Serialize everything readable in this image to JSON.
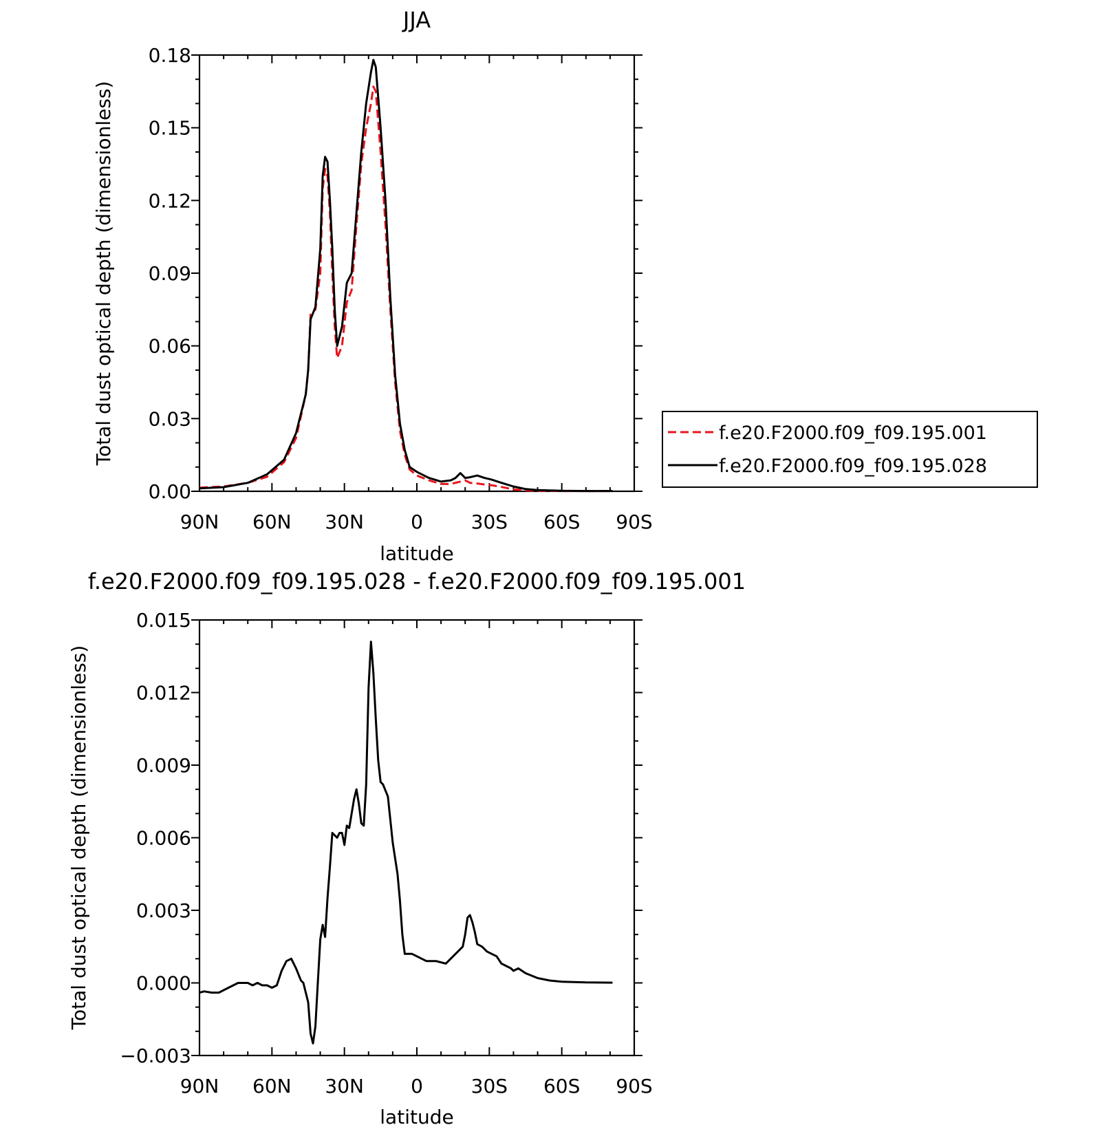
{
  "chart_data": [
    {
      "type": "line",
      "title": "JJA",
      "xlabel": "latitude",
      "ylabel": "Total dust optical depth (dimensionless)",
      "xlim": [
        90,
        -90
      ],
      "ylim": [
        0,
        0.18
      ],
      "x_ticks": [
        90,
        60,
        30,
        0,
        -30,
        -60,
        -90
      ],
      "x_tick_labels": [
        "90N",
        "60N",
        "30N",
        "0",
        "30S",
        "60S",
        "90S"
      ],
      "y_ticks": [
        0,
        0.03,
        0.06,
        0.09,
        0.12,
        0.15,
        0.18
      ],
      "y_tick_labels": [
        "0.00",
        "0.03",
        "0.06",
        "0.09",
        "0.12",
        "0.15",
        "0.18"
      ],
      "grid": false,
      "legend_position": "right",
      "series": [
        {
          "name": "f.e20.F2000.f09_f09.195.001",
          "color": "#e8141b",
          "dash": "dashed",
          "x": [
            90,
            80,
            70,
            62,
            55,
            50,
            46,
            45,
            44,
            42,
            40,
            39,
            38,
            37,
            36,
            35,
            34,
            33,
            31,
            29,
            27,
            25,
            23,
            21,
            19,
            18,
            17,
            15,
            13,
            11,
            9,
            7,
            5,
            3,
            0,
            -5,
            -10,
            -14,
            -16,
            -18,
            -20,
            -22,
            -25,
            -28,
            -31,
            -35,
            -40,
            -45,
            -50,
            -60,
            -70,
            -81
          ],
          "y": [
            0.0015,
            0.002,
            0.0035,
            0.006,
            0.012,
            0.022,
            0.04,
            0.05,
            0.073,
            0.075,
            0.09,
            0.125,
            0.133,
            0.13,
            0.115,
            0.09,
            0.068,
            0.055,
            0.06,
            0.078,
            0.083,
            0.11,
            0.135,
            0.15,
            0.16,
            0.167,
            0.165,
            0.14,
            0.11,
            0.075,
            0.045,
            0.025,
            0.015,
            0.009,
            0.0065,
            0.0045,
            0.003,
            0.003,
            0.0035,
            0.004,
            0.0045,
            0.0035,
            0.0032,
            0.0028,
            0.0025,
            0.0018,
            0.0008,
            0.0004,
            0.0002,
            0.0001,
            0.0001,
            0.0001
          ]
        },
        {
          "name": "f.e20.F2000.f09_f09.195.028",
          "color": "#000000",
          "dash": "solid",
          "x": [
            90,
            80,
            70,
            62,
            55,
            50,
            46,
            45,
            44,
            42,
            40,
            39,
            38,
            37,
            36,
            35,
            34,
            33,
            31,
            29,
            27,
            25,
            23,
            21,
            19,
            18,
            17,
            15,
            13,
            11,
            9,
            7,
            5,
            3,
            0,
            -5,
            -10,
            -14,
            -16,
            -18,
            -20,
            -22,
            -25,
            -28,
            -31,
            -35,
            -40,
            -45,
            -50,
            -60,
            -70,
            -81
          ],
          "y": [
            0.0012,
            0.0017,
            0.0035,
            0.007,
            0.013,
            0.024,
            0.04,
            0.05,
            0.071,
            0.076,
            0.1,
            0.13,
            0.138,
            0.136,
            0.12,
            0.1,
            0.075,
            0.06,
            0.068,
            0.086,
            0.09,
            0.115,
            0.14,
            0.16,
            0.173,
            0.178,
            0.175,
            0.15,
            0.12,
            0.08,
            0.048,
            0.028,
            0.017,
            0.01,
            0.008,
            0.0055,
            0.004,
            0.0045,
            0.0055,
            0.0075,
            0.0055,
            0.0058,
            0.0065,
            0.0055,
            0.0048,
            0.0035,
            0.002,
            0.0009,
            0.0005,
            0.0002,
            0.0001,
            0.0001
          ]
        }
      ]
    },
    {
      "type": "line",
      "title": "f.e20.F2000.f09_f09.195.028 - f.e20.F2000.f09_f09.195.001",
      "xlabel": "latitude",
      "ylabel": "Total dust optical depth (dimensionless)",
      "xlim": [
        90,
        -90
      ],
      "ylim": [
        -0.003,
        0.015
      ],
      "x_ticks": [
        90,
        60,
        30,
        0,
        -30,
        -60,
        -90
      ],
      "x_tick_labels": [
        "90N",
        "60N",
        "30N",
        "0",
        "30S",
        "60S",
        "90S"
      ],
      "y_ticks": [
        -0.003,
        0,
        0.003,
        0.006,
        0.009,
        0.012,
        0.015
      ],
      "y_tick_labels": [
        "−0.003",
        "0.000",
        "0.003",
        "0.006",
        "0.009",
        "0.012",
        "0.015"
      ],
      "grid": false,
      "series": [
        {
          "color": "#000000",
          "dash": "solid",
          "x": [
            90,
            88,
            85,
            82,
            78,
            74,
            70,
            68,
            66,
            64,
            62,
            60,
            58,
            56,
            54,
            52,
            50,
            48,
            47,
            45,
            44,
            43,
            42,
            41,
            40,
            39,
            38,
            37,
            36,
            35,
            34,
            33,
            32,
            31,
            30,
            29,
            28,
            27,
            26,
            25,
            24,
            23,
            22,
            21,
            20,
            19,
            18,
            17,
            16,
            15,
            14,
            12,
            10,
            8,
            7,
            6,
            5,
            4,
            2,
            0,
            -4,
            -8,
            -12,
            -14,
            -16,
            -18,
            -19,
            -20,
            -21,
            -22,
            -23,
            -24,
            -25,
            -27,
            -29,
            -31,
            -33,
            -35,
            -37,
            -39,
            -40,
            -42,
            -45,
            -50,
            -55,
            -60,
            -70,
            -81
          ],
          "y": [
            -0.0004,
            -0.00035,
            -0.0004,
            -0.0004,
            -0.0002,
            0.0,
            0.0,
            -0.0001,
            0.0,
            -0.0001,
            -0.0001,
            -0.0002,
            -0.0001,
            0.0005,
            0.0009,
            0.001,
            0.0006,
            0.0001,
            0.0,
            -0.0008,
            -0.0021,
            -0.0025,
            -0.0018,
            0.0,
            0.0018,
            0.0024,
            0.0019,
            0.0035,
            0.0048,
            0.0062,
            0.0061,
            0.006,
            0.0062,
            0.0062,
            0.0057,
            0.0065,
            0.0064,
            0.007,
            0.0076,
            0.008,
            0.0074,
            0.0066,
            0.0065,
            0.0082,
            0.0122,
            0.0141,
            0.0128,
            0.0109,
            0.0092,
            0.0083,
            0.0082,
            0.0077,
            0.0058,
            0.0045,
            0.0034,
            0.002,
            0.0012,
            0.0012,
            0.0012,
            0.0011,
            0.0009,
            0.0009,
            0.0008,
            0.001,
            0.0012,
            0.0014,
            0.0015,
            0.002,
            0.0027,
            0.0028,
            0.0025,
            0.0021,
            0.0016,
            0.0015,
            0.0013,
            0.0012,
            0.0011,
            0.0008,
            0.0007,
            0.0006,
            0.0005,
            0.0006,
            0.0004,
            0.0002,
            0.0001,
            5e-05,
            2e-05,
            1e-05
          ]
        }
      ]
    }
  ]
}
